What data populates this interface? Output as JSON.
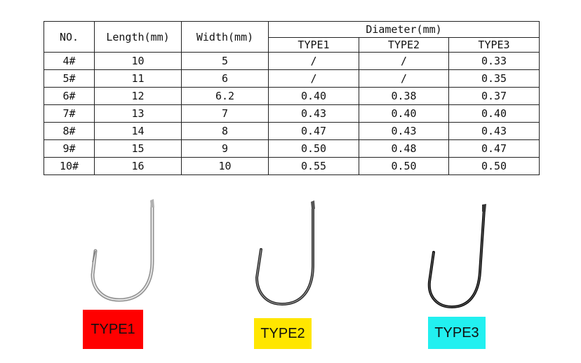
{
  "table": {
    "headers": {
      "no": "NO.",
      "length": "Length(mm)",
      "width": "Width(mm)",
      "diameter": "Diameter(mm)",
      "types": [
        "TYPE1",
        "TYPE2",
        "TYPE3"
      ]
    },
    "rows": [
      {
        "no": "4#",
        "length": "10",
        "width": "5",
        "d1": "/",
        "d2": "/",
        "d3": "0.33"
      },
      {
        "no": "5#",
        "length": "11",
        "width": "6",
        "d1": "/",
        "d2": "/",
        "d3": "0.35"
      },
      {
        "no": "6#",
        "length": "12",
        "width": "6.2",
        "d1": "0.40",
        "d2": "0.38",
        "d3": "0.37"
      },
      {
        "no": "7#",
        "length": "13",
        "width": "7",
        "d1": "0.43",
        "d2": "0.40",
        "d3": "0.40"
      },
      {
        "no": "8#",
        "length": "14",
        "width": "8",
        "d1": "0.47",
        "d2": "0.43",
        "d3": "0.43"
      },
      {
        "no": "9#",
        "length": "15",
        "width": "9",
        "d1": "0.50",
        "d2": "0.48",
        "d3": "0.47"
      },
      {
        "no": "10#",
        "length": "16",
        "width": "10",
        "d1": "0.55",
        "d2": "0.50",
        "d3": "0.50"
      }
    ]
  },
  "hooks": [
    {
      "label": "TYPE1",
      "color": "#ff0000",
      "finish": "silver-hook-icon"
    },
    {
      "label": "TYPE2",
      "color": "#ffe600",
      "finish": "dark-hook-icon"
    },
    {
      "label": "TYPE3",
      "color": "#22f0f0",
      "finish": "black-hook-icon"
    }
  ]
}
